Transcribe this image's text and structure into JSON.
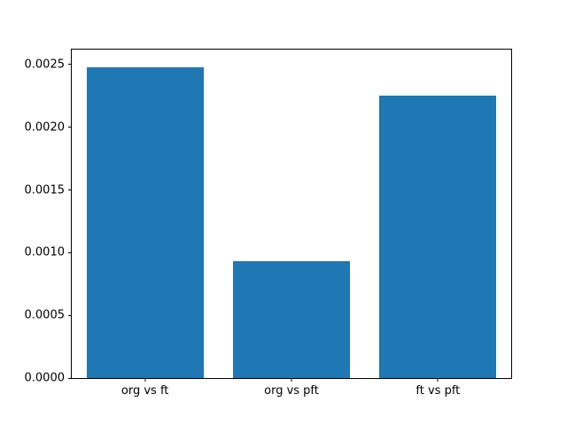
{
  "figure": {
    "background_color": "#ffffff",
    "spine_color": "#000000",
    "text_color": "#000000"
  },
  "chart_data": {
    "type": "bar",
    "title": "",
    "xlabel": "",
    "ylabel": "",
    "categories": [
      "org vs ft",
      "org vs pft",
      "ft vs pft"
    ],
    "values": [
      0.00248,
      0.00093,
      0.00225
    ],
    "bar_color": "#1f77b4",
    "bar_width_fraction": 0.8,
    "ylim": [
      0,
      0.00262
    ],
    "yticks": [
      0.0,
      0.0005,
      0.001,
      0.0015,
      0.002,
      0.0025
    ],
    "ytick_labels": [
      "0.0000",
      "0.0005",
      "0.0010",
      "0.0015",
      "0.0020",
      "0.0025"
    ],
    "grid": false,
    "legend_position": "none"
  }
}
